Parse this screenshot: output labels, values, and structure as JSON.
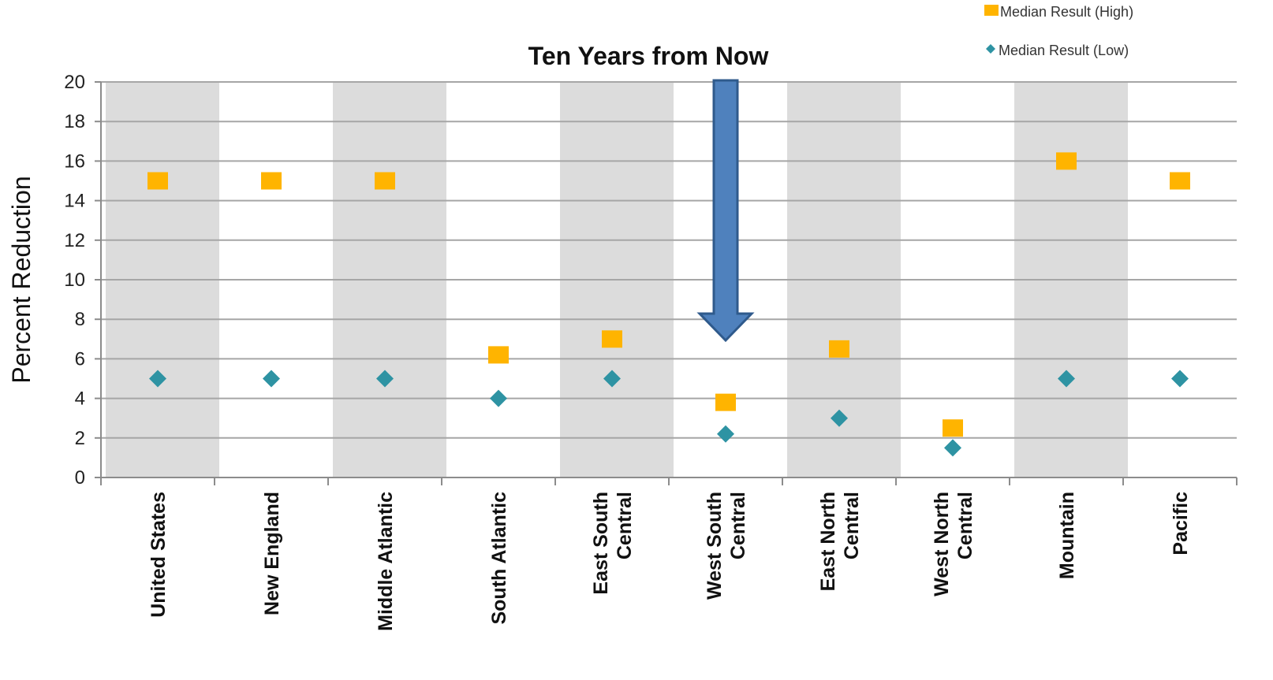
{
  "chart_data": {
    "type": "scatter",
    "title": "Ten Years from Now",
    "xlabel": "",
    "ylabel": "Percent Reduction",
    "ylim": [
      0,
      20
    ],
    "yticks": [
      0,
      2,
      4,
      6,
      8,
      10,
      12,
      14,
      16,
      18,
      20
    ],
    "grid": true,
    "legend_position": "top-right",
    "categories": [
      [
        "United States"
      ],
      [
        "New England"
      ],
      [
        "Middle Atlantic"
      ],
      [
        "South Atlantic"
      ],
      [
        "East South",
        "Central"
      ],
      [
        "West South",
        "Central"
      ],
      [
        "East North",
        "Central"
      ],
      [
        "West North",
        "Central"
      ],
      [
        "Mountain"
      ],
      [
        "Pacific"
      ]
    ],
    "series": [
      {
        "name": "Median Result  (High)",
        "marker": "square",
        "color": "#FFB400",
        "values": [
          15,
          15,
          15,
          6.2,
          7,
          3.8,
          6.5,
          2.5,
          16,
          15
        ]
      },
      {
        "name": "Median Result (Low)",
        "marker": "diamond",
        "color": "#2E93A3",
        "values": [
          5,
          5,
          5,
          4,
          5,
          2.2,
          3,
          1.5,
          5,
          5
        ]
      }
    ],
    "annotation": {
      "type": "down-arrow",
      "category_index": 5,
      "color": "#4F81BD",
      "border_color": "#2F5A8C"
    },
    "band_color": "#DCDCDC",
    "grid_color": "#A6A6A6"
  }
}
